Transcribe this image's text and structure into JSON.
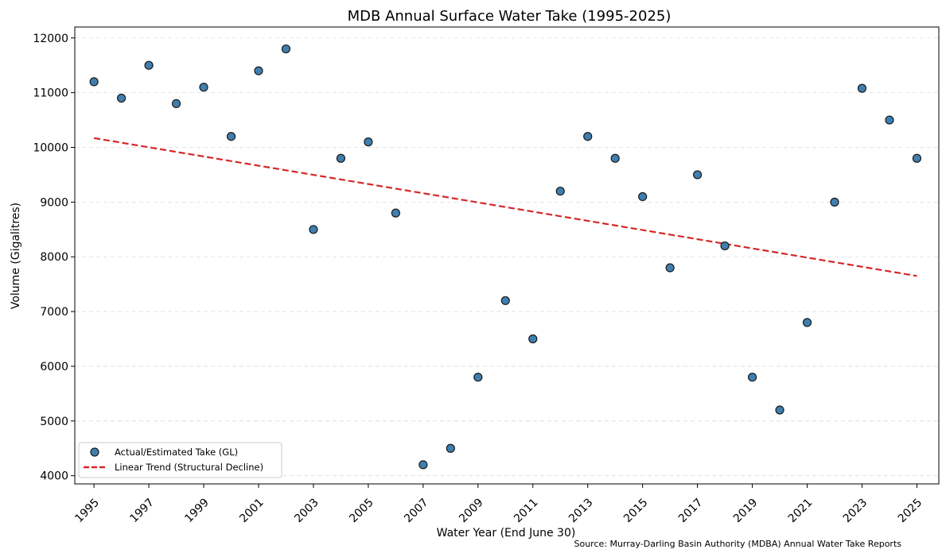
{
  "chart_data": {
    "type": "scatter",
    "title": "MDB Annual Surface Water Take (1995-2025)",
    "xlabel": "Water Year (End June 30)",
    "ylabel": "Volume (Gigalitres)",
    "xlim": [
      1994.3,
      2025.8
    ],
    "ylim": [
      3850,
      12200
    ],
    "x_ticks": [
      1995,
      1997,
      1999,
      2001,
      2003,
      2005,
      2007,
      2009,
      2011,
      2013,
      2015,
      2017,
      2019,
      2021,
      2023,
      2025
    ],
    "x_tick_labels": [
      "1995",
      "1997",
      "1999",
      "2001",
      "2003",
      "2005",
      "2007",
      "2009",
      "2011",
      "2013",
      "2015",
      "2017",
      "2019",
      "2021",
      "2023",
      "2025"
    ],
    "y_ticks": [
      4000,
      5000,
      6000,
      7000,
      8000,
      9000,
      10000,
      11000,
      12000
    ],
    "y_tick_labels": [
      "4000",
      "5000",
      "6000",
      "7000",
      "8000",
      "9000",
      "10000",
      "11000",
      "12000"
    ],
    "grid": "y-dashed",
    "legend_position": "lower-left",
    "series": [
      {
        "name": "Actual/Estimated Take (GL)",
        "kind": "scatter",
        "color": "#3f7fb0",
        "edge_color": "#1a1a1a",
        "x": [
          1995,
          1996,
          1997,
          1998,
          1999,
          2000,
          2001,
          2002,
          2003,
          2004,
          2005,
          2006,
          2007,
          2008,
          2009,
          2010,
          2011,
          2012,
          2013,
          2014,
          2015,
          2016,
          2017,
          2018,
          2019,
          2020,
          2021,
          2022,
          2023,
          2024,
          2025
        ],
        "y": [
          11200,
          10900,
          11500,
          10800,
          11100,
          10200,
          11400,
          11800,
          8500,
          9800,
          10100,
          8800,
          4200,
          4500,
          5800,
          7200,
          6500,
          9200,
          10200,
          9800,
          9100,
          7800,
          9500,
          8200,
          5800,
          5200,
          6800,
          9000,
          11080,
          10500,
          9800
        ]
      },
      {
        "name": "Linear Trend (Structural Decline)",
        "kind": "line",
        "style": "dashed",
        "color": "#d62728",
        "x": [
          1995,
          2025
        ],
        "y": [
          10170,
          7650
        ]
      }
    ],
    "annotation": "Source: Murray-Darling Basin Authority (MDBA) Annual Water Take Reports"
  }
}
